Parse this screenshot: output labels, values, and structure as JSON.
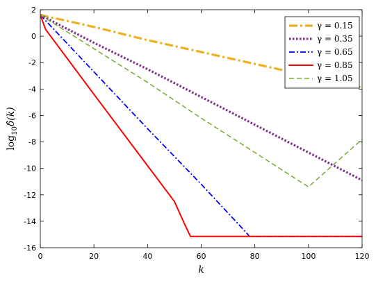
{
  "chart_data": {
    "type": "line",
    "xlabel": "k",
    "ylabel_prefix": "log",
    "ylabel_sub": "10",
    "ylabel_suffix": "δ̂(k)",
    "xlim": [
      0,
      120
    ],
    "ylim": [
      -16,
      2
    ],
    "xticks": [
      0,
      20,
      40,
      60,
      80,
      100,
      120
    ],
    "yticks": [
      2,
      0,
      -2,
      -4,
      -6,
      -8,
      -10,
      -12,
      -14,
      -16
    ],
    "grid": false,
    "legend_position": "top-right",
    "series": [
      {
        "name": "γ = 0.15",
        "color": "#EDB120",
        "style": "dashdot-thick",
        "points": [
          [
            0,
            1.6
          ],
          [
            20,
            0.7
          ],
          [
            40,
            -0.3
          ],
          [
            60,
            -1.2
          ],
          [
            80,
            -2.1
          ],
          [
            100,
            -3.0
          ],
          [
            120,
            -3.9
          ]
        ]
      },
      {
        "name": "γ = 0.35",
        "color": "#7E2F8E",
        "style": "dotted-thick",
        "points": [
          [
            0,
            1.6
          ],
          [
            20,
            -0.5
          ],
          [
            40,
            -2.5
          ],
          [
            60,
            -4.6
          ],
          [
            80,
            -6.7
          ],
          [
            100,
            -8.8
          ],
          [
            120,
            -10.9
          ]
        ]
      },
      {
        "name": "γ = 0.65",
        "color": "#0000FF",
        "style": "dashdot",
        "points": [
          [
            0,
            1.6
          ],
          [
            20,
            -2.7
          ],
          [
            40,
            -7.0
          ],
          [
            60,
            -11.2
          ],
          [
            77,
            -14.9
          ],
          [
            78,
            -15.15
          ],
          [
            120,
            -15.15
          ]
        ]
      },
      {
        "name": "γ = 0.85",
        "color": "#FF0000",
        "style": "solid",
        "points": [
          [
            0,
            1.6
          ],
          [
            2,
            0.5
          ],
          [
            20,
            -4.4
          ],
          [
            40,
            -9.8
          ],
          [
            50,
            -12.5
          ],
          [
            54,
            -14.3
          ],
          [
            56,
            -15.15
          ],
          [
            120,
            -15.15
          ]
        ]
      },
      {
        "name": "γ = 1.05",
        "color": "#77AC30",
        "style": "dashed",
        "points": [
          [
            0,
            1.6
          ],
          [
            20,
            -0.95
          ],
          [
            40,
            -3.5
          ],
          [
            60,
            -6.2
          ],
          [
            80,
            -8.8
          ],
          [
            100,
            -11.4
          ],
          [
            120,
            -7.8
          ]
        ]
      }
    ]
  }
}
